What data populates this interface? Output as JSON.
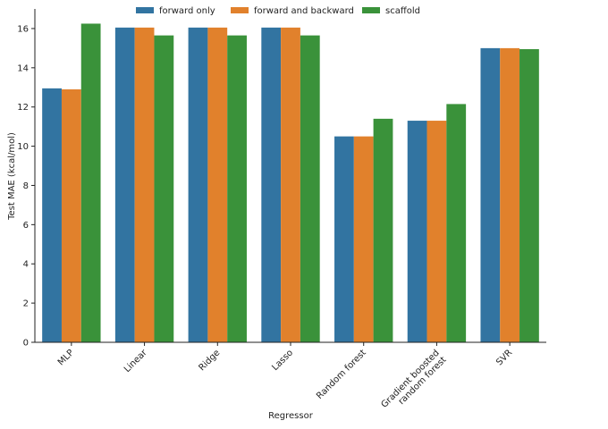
{
  "chart_data": {
    "type": "bar",
    "xlabel": "Regressor",
    "ylabel": "Test MAE (kcal/mol)",
    "ylim": [
      0,
      17
    ],
    "yticks": [
      0,
      2,
      4,
      6,
      8,
      10,
      12,
      14,
      16
    ],
    "categories": [
      [
        "MLP"
      ],
      [
        "Linear"
      ],
      [
        "Ridge"
      ],
      [
        "Lasso"
      ],
      [
        "Random forest"
      ],
      [
        "Gradient boosted",
        "random forest"
      ],
      [
        "SVR"
      ]
    ],
    "legend_position": "top-center",
    "grid": false,
    "series": [
      {
        "name": "forward only",
        "color": "#3274a1",
        "values": [
          12.95,
          16.05,
          16.05,
          16.05,
          10.5,
          11.3,
          15.0
        ]
      },
      {
        "name": "forward and backward",
        "color": "#e1812c",
        "values": [
          12.9,
          16.05,
          16.05,
          16.05,
          10.5,
          11.3,
          15.0
        ]
      },
      {
        "name": "scaffold",
        "color": "#3a923a",
        "values": [
          16.25,
          15.65,
          15.65,
          15.65,
          11.4,
          12.15,
          14.95
        ]
      }
    ]
  }
}
